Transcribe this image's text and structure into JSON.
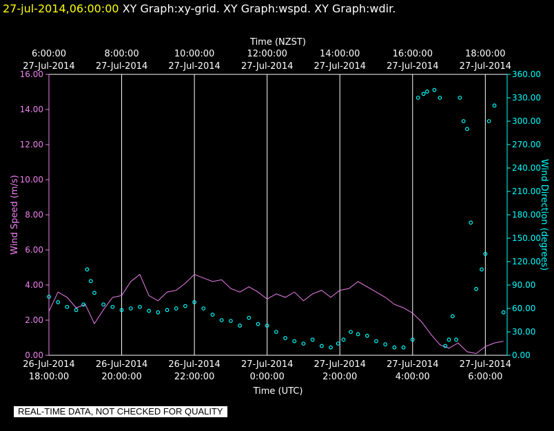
{
  "header": {
    "timestamp": "27-jul-2014,06:00:00",
    "graphs": [
      "XY Graph:xy-grid.",
      "XY Graph:wspd.",
      "XY Graph:wdir."
    ]
  },
  "footer_note": "REAL-TIME DATA, NOT CHECKED FOR QUALITY",
  "colors": {
    "background": "#000000",
    "axis": "#ffffff",
    "wspd": "#ee82ee",
    "wdir": "#00ffff",
    "timestamp": "#ffff00"
  },
  "chart_data": {
    "type": "line",
    "top_axis": {
      "title": "Time (NZST)",
      "ticks": [
        {
          "x": 0,
          "time": "6:00:00",
          "date": "27-Jul-2014"
        },
        {
          "x": 2,
          "time": "8:00:00",
          "date": "27-Jul-2014"
        },
        {
          "x": 4,
          "time": "10:00:00",
          "date": "27-Jul-2014"
        },
        {
          "x": 6,
          "time": "12:00:00",
          "date": "27-Jul-2014"
        },
        {
          "x": 8,
          "time": "14:00:00",
          "date": "27-Jul-2014"
        },
        {
          "x": 10,
          "time": "16:00:00",
          "date": "27-Jul-2014"
        },
        {
          "x": 12,
          "time": "18:00:00",
          "date": "27-Jul-2014"
        }
      ]
    },
    "bottom_axis": {
      "title": "Time (UTC)",
      "ticks": [
        {
          "x": 0,
          "date": "26-Jul-2014",
          "time": "18:00:00"
        },
        {
          "x": 2,
          "date": "26-Jul-2014",
          "time": "20:00:00"
        },
        {
          "x": 4,
          "date": "26-Jul-2014",
          "time": "22:00:00"
        },
        {
          "x": 6,
          "date": "27-Jul-2014",
          "time": "0:00:00"
        },
        {
          "x": 8,
          "date": "27-Jul-2014",
          "time": "2:00:00"
        },
        {
          "x": 10,
          "date": "27-Jul-2014",
          "time": "4:00:00"
        },
        {
          "x": 12,
          "date": "27-Jul-2014",
          "time": "6:00:00"
        }
      ]
    },
    "x_range_hours": [
      0,
      12.6
    ],
    "left_axis": {
      "label": "Wind Speed (m/s)",
      "range": [
        0,
        16
      ],
      "ticks": [
        "0.00",
        "2.00",
        "4.00",
        "6.00",
        "8.00",
        "10.00",
        "12.00",
        "14.00",
        "16.00"
      ]
    },
    "right_axis": {
      "label": "Wind Direction (degrees)",
      "range": [
        0,
        360
      ],
      "ticks": [
        "0.00",
        "30.00",
        "60.00",
        "90.00",
        "120.00",
        "150.00",
        "180.00",
        "210.00",
        "240.00",
        "270.00",
        "300.00",
        "330.00",
        "360.00"
      ]
    },
    "grid": "vertical lines at bottom-axis ticks",
    "series": [
      {
        "name": "wspd",
        "axis": "left",
        "style": "line",
        "x": [
          0,
          0.25,
          0.5,
          0.75,
          1,
          1.25,
          1.5,
          1.75,
          2,
          2.25,
          2.5,
          2.75,
          3,
          3.25,
          3.5,
          3.75,
          4,
          4.25,
          4.5,
          4.75,
          5,
          5.25,
          5.5,
          5.75,
          6,
          6.25,
          6.5,
          6.75,
          7,
          7.25,
          7.5,
          7.75,
          8,
          8.25,
          8.5,
          8.75,
          9,
          9.25,
          9.5,
          9.75,
          10,
          10.25,
          10.5,
          10.75,
          11,
          11.25,
          11.5,
          11.75,
          12,
          12.25,
          12.5
        ],
        "y": [
          2.5,
          3.6,
          3.3,
          2.7,
          2.9,
          1.8,
          2.6,
          3.3,
          3.4,
          4.2,
          4.6,
          3.4,
          3.1,
          3.6,
          3.7,
          4.1,
          4.6,
          4.4,
          4.2,
          4.3,
          3.8,
          3.6,
          3.9,
          3.6,
          3.2,
          3.5,
          3.3,
          3.6,
          3.1,
          3.5,
          3.7,
          3.3,
          3.7,
          3.8,
          4.2,
          3.9,
          3.6,
          3.3,
          2.9,
          2.7,
          2.4,
          1.9,
          1.2,
          0.6,
          0.4,
          0.7,
          0.2,
          0.1,
          0.5,
          0.7,
          0.8
        ]
      },
      {
        "name": "wdir",
        "axis": "right",
        "style": "circles",
        "x": [
          0,
          0.25,
          0.5,
          0.75,
          0.95,
          1.05,
          1.15,
          1.25,
          1.5,
          1.75,
          2,
          2.25,
          2.5,
          2.75,
          3,
          3.25,
          3.5,
          3.75,
          4,
          4.25,
          4.5,
          4.75,
          5,
          5.25,
          5.5,
          5.75,
          6,
          6.25,
          6.5,
          6.75,
          7,
          7.25,
          7.5,
          7.75,
          7.95,
          8.1,
          8.3,
          8.5,
          8.75,
          9,
          9.25,
          9.5,
          9.75,
          10,
          10.15,
          10.3,
          10.4,
          10.6,
          10.75,
          10.9,
          11.0,
          11.1,
          11.2,
          11.3,
          11.4,
          11.5,
          11.6,
          11.75,
          11.9,
          12,
          12.1,
          12.25,
          12.5
        ],
        "y": [
          75,
          68,
          62,
          58,
          65,
          110,
          95,
          80,
          65,
          62,
          58,
          60,
          62,
          57,
          55,
          58,
          60,
          63,
          68,
          60,
          52,
          45,
          44,
          38,
          48,
          40,
          38,
          30,
          22,
          18,
          15,
          20,
          12,
          10,
          15,
          20,
          30,
          27,
          25,
          18,
          14,
          10,
          10,
          20,
          330,
          335,
          338,
          340,
          330,
          12,
          20,
          50,
          20,
          330,
          300,
          290,
          170,
          85,
          110,
          130,
          300,
          320,
          55
        ]
      }
    ]
  }
}
